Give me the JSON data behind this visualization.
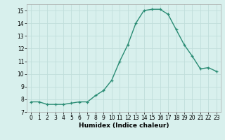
{
  "x": [
    0,
    1,
    2,
    3,
    4,
    5,
    6,
    7,
    8,
    9,
    10,
    11,
    12,
    13,
    14,
    15,
    16,
    17,
    18,
    19,
    20,
    21,
    22,
    23
  ],
  "y": [
    7.8,
    7.8,
    7.6,
    7.6,
    7.6,
    7.7,
    7.8,
    7.8,
    8.3,
    8.7,
    9.5,
    11.0,
    12.3,
    14.0,
    15.0,
    15.1,
    15.1,
    14.7,
    13.5,
    12.3,
    11.4,
    10.4,
    10.5,
    10.2
  ],
  "line_color": "#2a8c74",
  "marker": "+",
  "marker_color": "#2a8c74",
  "bg_color": "#d8f0ed",
  "grid_color": "#c0deda",
  "xlabel": "Humidex (Indice chaleur)",
  "xlim": [
    -0.5,
    23.5
  ],
  "ylim": [
    7,
    15.5
  ],
  "yticks": [
    7,
    8,
    9,
    10,
    11,
    12,
    13,
    14,
    15
  ],
  "xticks": [
    0,
    1,
    2,
    3,
    4,
    5,
    6,
    7,
    8,
    9,
    10,
    11,
    12,
    13,
    14,
    15,
    16,
    17,
    18,
    19,
    20,
    21,
    22,
    23
  ],
  "label_fontsize": 6.5,
  "tick_fontsize": 5.5,
  "linewidth": 1.0,
  "markersize": 3.5
}
